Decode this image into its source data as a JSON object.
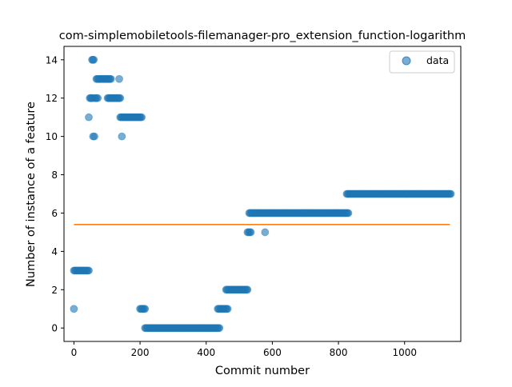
{
  "chart_data": {
    "type": "scatter",
    "title": "com-simplemobiletools-filemanager-pro_extension_function-logarithm",
    "xlabel": "Commit number",
    "ylabel": "Number of instance of a feature",
    "xlim": [
      -30,
      1170
    ],
    "ylim": [
      -0.7,
      14.7
    ],
    "xticks": [
      0,
      200,
      400,
      600,
      800,
      1000
    ],
    "yticks": [
      0,
      2,
      4,
      6,
      8,
      10,
      12,
      14
    ],
    "grid": false,
    "legend": {
      "position": "top-right",
      "entries": [
        "data"
      ]
    },
    "colors": {
      "points": "#1f77b4",
      "trend": "#ff7f0e"
    },
    "series": [
      {
        "name": "data",
        "kind": "scatter",
        "segments": [
          {
            "x_start": 0,
            "x_end": 0,
            "y": 1
          },
          {
            "x_start": 0,
            "x_end": 45,
            "y": 3
          },
          {
            "x_start": 45,
            "x_end": 45,
            "y": 11
          },
          {
            "x_start": 48,
            "x_end": 56,
            "y": 12
          },
          {
            "x_start": 55,
            "x_end": 60,
            "y": 14
          },
          {
            "x_start": 58,
            "x_end": 62,
            "y": 10
          },
          {
            "x_start": 62,
            "x_end": 72,
            "y": 12
          },
          {
            "x_start": 68,
            "x_end": 112,
            "y": 13
          },
          {
            "x_start": 102,
            "x_end": 140,
            "y": 12
          },
          {
            "x_start": 137,
            "x_end": 137,
            "y": 13
          },
          {
            "x_start": 140,
            "x_end": 205,
            "y": 11
          },
          {
            "x_start": 145,
            "x_end": 145,
            "y": 10
          },
          {
            "x_start": 200,
            "x_end": 215,
            "y": 1
          },
          {
            "x_start": 215,
            "x_end": 440,
            "y": 0
          },
          {
            "x_start": 435,
            "x_end": 465,
            "y": 1
          },
          {
            "x_start": 460,
            "x_end": 525,
            "y": 2
          },
          {
            "x_start": 525,
            "x_end": 535,
            "y": 5
          },
          {
            "x_start": 530,
            "x_end": 830,
            "y": 6
          },
          {
            "x_start": 578,
            "x_end": 578,
            "y": 5
          },
          {
            "x_start": 825,
            "x_end": 1140,
            "y": 7
          }
        ]
      },
      {
        "name": "",
        "kind": "line",
        "x": [
          0,
          1137
        ],
        "y": [
          5.4,
          5.4
        ]
      }
    ]
  }
}
